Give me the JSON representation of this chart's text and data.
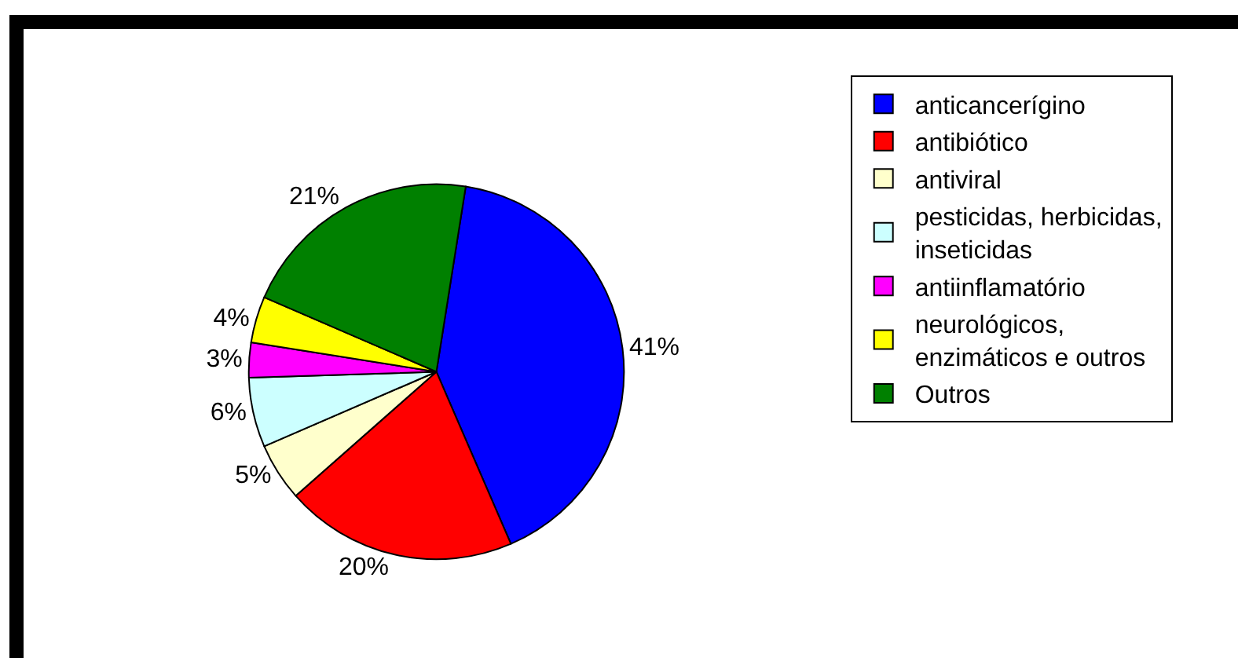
{
  "chart_data": {
    "type": "pie",
    "categories": [
      "anticancerígino",
      "antibiótico",
      "antiviral",
      "pesticidas, herbicidas, inseticidas",
      "antiinflamatório",
      "neurológicos, enzimáticos e outros",
      "Outros"
    ],
    "values": [
      41,
      20,
      5,
      6,
      3,
      4,
      21
    ],
    "colors": [
      "#0000ff",
      "#ff0000",
      "#ffffcc",
      "#ccffff",
      "#ff00ff",
      "#ffff00",
      "#008000"
    ],
    "value_labels": [
      "41%",
      "20%",
      "5%",
      "6%",
      "3%",
      "4%",
      "21%"
    ],
    "legend": "right"
  }
}
